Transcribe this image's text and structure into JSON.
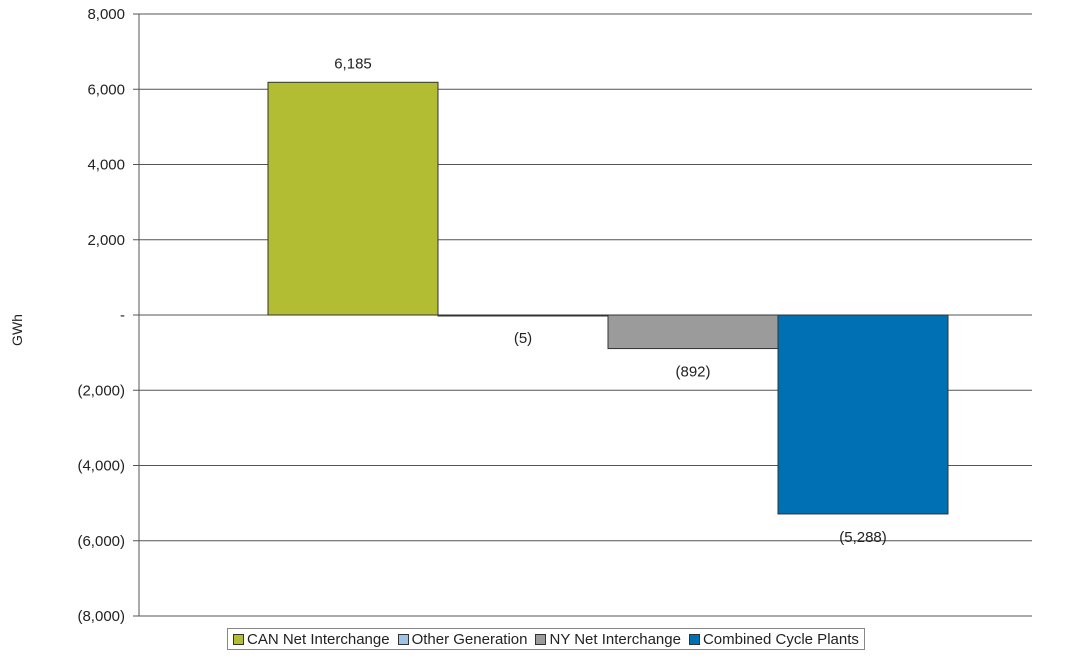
{
  "chart_data": {
    "type": "bar",
    "ylabel": "GWh",
    "ylim": [
      -8000,
      8000
    ],
    "yticks": [
      8000,
      6000,
      4000,
      2000,
      0,
      -2000,
      -4000,
      -6000,
      -8000
    ],
    "ytick_labels": [
      "8,000",
      "6,000",
      "4,000",
      "2,000",
      "-",
      "(2,000)",
      "(4,000)",
      "(6,000)",
      "(8,000)"
    ],
    "grid": true,
    "legend_position": "bottom",
    "series": [
      {
        "name": "CAN Net Interchange",
        "value": 6185,
        "label": "6,185",
        "color": "#b2bd34"
      },
      {
        "name": "Other Generation",
        "value": -5,
        "label": "(5)",
        "color": "#9dc3e6"
      },
      {
        "name": "NY Net Interchange",
        "value": -892,
        "label": "(892)",
        "color": "#9b9b9b"
      },
      {
        "name": "Combined Cycle Plants",
        "value": -5288,
        "label": "(5,288)",
        "color": "#0070b4"
      }
    ]
  }
}
